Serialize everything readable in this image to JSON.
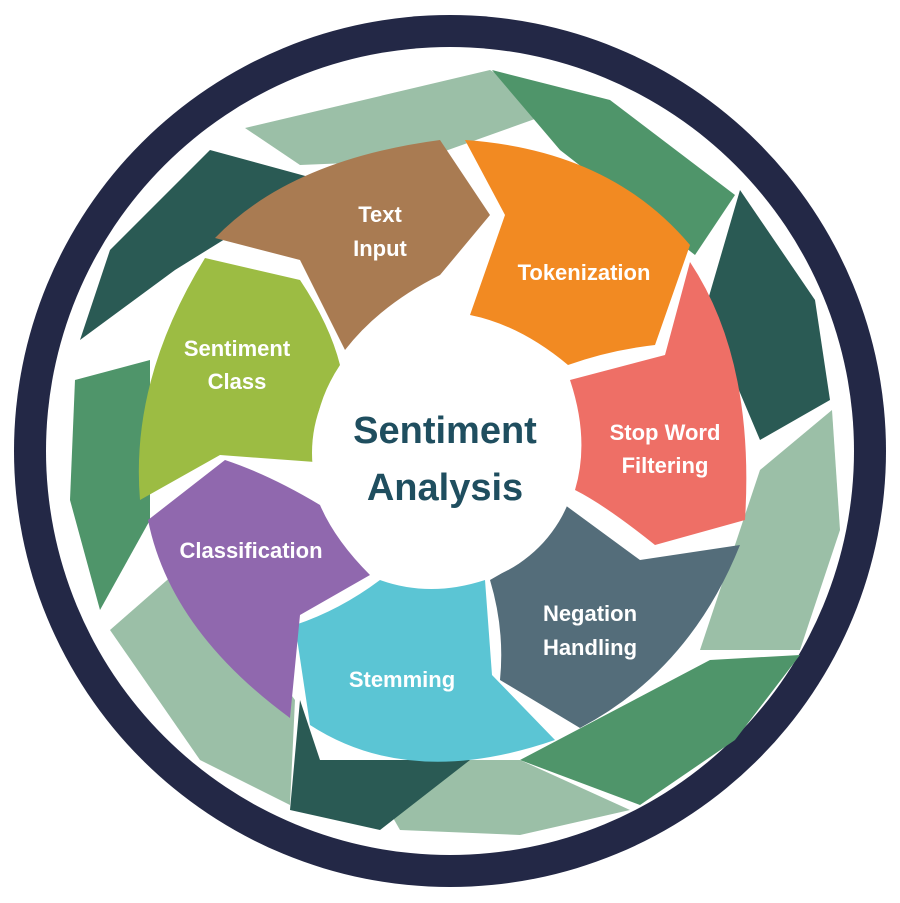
{
  "center": {
    "line1": "Sentiment",
    "line2": "Analysis"
  },
  "segments": [
    {
      "line1": "Text",
      "line2": "Input",
      "color": "#a97b52"
    },
    {
      "line1": "Tokenization",
      "line2": "",
      "color": "#f28a22"
    },
    {
      "line1": "Stop Word",
      "line2": "Filtering",
      "color": "#ee6f66"
    },
    {
      "line1": "Negation",
      "line2": "Handling",
      "color": "#546d7a"
    },
    {
      "line1": "Stemming",
      "line2": "",
      "color": "#5bc5d4"
    },
    {
      "line1": "Classification",
      "line2": "",
      "color": "#9068ae"
    },
    {
      "line1": "Sentiment",
      "line2": "Class",
      "color": "#9cbc43"
    }
  ],
  "colors": {
    "ring_outer": "#232846",
    "blade_light": "#9bbfa7",
    "blade_mid": "#4f956a",
    "blade_dark": "#2a5a54",
    "center_text": "#1f4e5f"
  }
}
